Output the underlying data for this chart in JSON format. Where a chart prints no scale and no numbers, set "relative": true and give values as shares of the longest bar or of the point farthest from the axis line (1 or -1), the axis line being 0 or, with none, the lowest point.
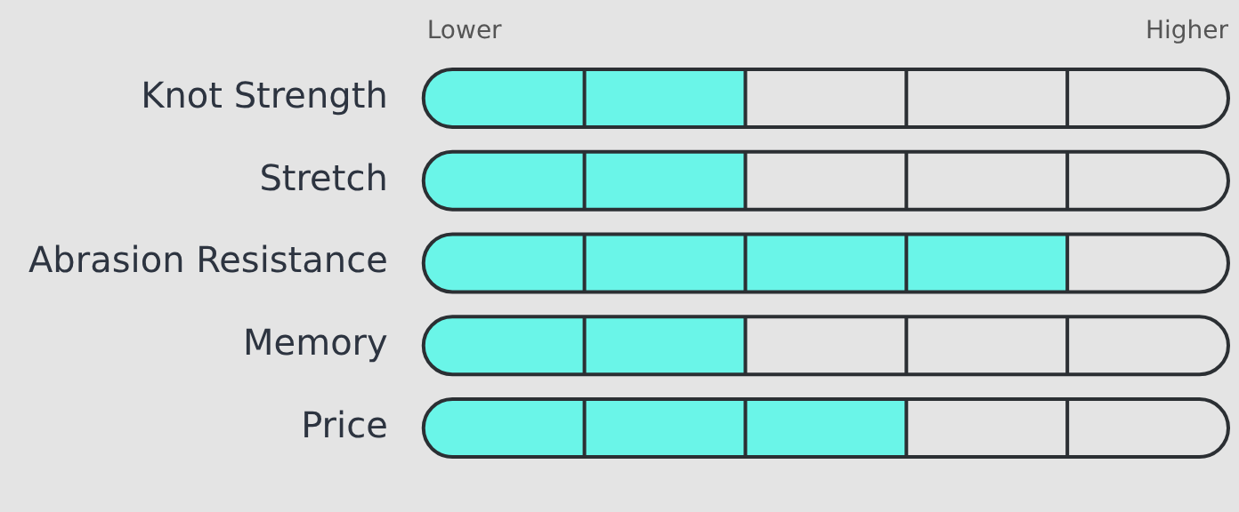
{
  "chart_data": {
    "type": "bar",
    "orientation": "horizontal",
    "relative": true,
    "categories": [
      "Knot Strength",
      "Stretch",
      "Abrasion Resistance",
      "Memory",
      "Price"
    ],
    "values": [
      0.5,
      0.5,
      1,
      0.5,
      0.75
    ],
    "color": "#6af5e8",
    "annotations": [
      "Lower",
      "Higher"
    ],
    "grid": "x",
    "legend": false
  }
}
